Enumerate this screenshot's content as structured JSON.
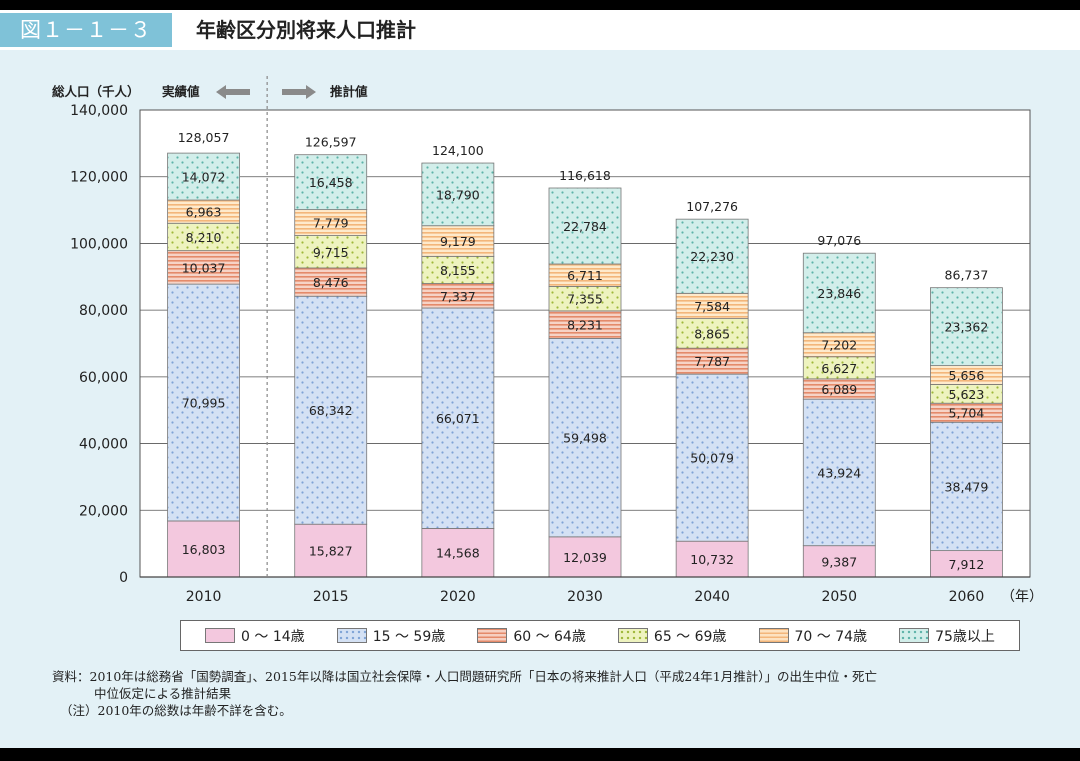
{
  "header": {
    "figure_label": "図１－１－３",
    "title": "年齢区分別将来人口推計"
  },
  "chart_data": {
    "type": "bar",
    "stacked": true,
    "categories": [
      "2010",
      "2015",
      "2020",
      "2030",
      "2040",
      "2050",
      "2060"
    ],
    "x_unit": "（年）",
    "ylabel": "総人口（千人）",
    "ylim": [
      0,
      140000
    ],
    "yticks": [
      0,
      20000,
      40000,
      60000,
      80000,
      100000,
      120000,
      140000
    ],
    "ytick_labels": [
      "0",
      "20,000",
      "40,000",
      "60,000",
      "80,000",
      "100,000",
      "120,000",
      "140,000"
    ],
    "actual_label": "実績値",
    "projected_label": "推計値",
    "series": [
      {
        "name": "0 ～ 14歳",
        "color": "#f3c8de",
        "pattern": "none",
        "values": [
          16803,
          15827,
          14568,
          12039,
          10732,
          9387,
          7912
        ],
        "labels": [
          "16,803",
          "15,827",
          "14,568",
          "12,039",
          "10,732",
          "9,387",
          "7,912"
        ]
      },
      {
        "name": "15 ～ 59歳",
        "color": "#d4e1f4",
        "pattern": "dots-blue",
        "values": [
          70995,
          68342,
          66071,
          59498,
          50079,
          43924,
          38479
        ],
        "labels": [
          "70,995",
          "68,342",
          "66,071",
          "59,498",
          "50,079",
          "43,924",
          "38,479"
        ]
      },
      {
        "name": "60 ～ 64歳",
        "color": "#f6cfc1",
        "pattern": "hlines-red",
        "values": [
          10037,
          8476,
          7337,
          8231,
          7787,
          6089,
          5704
        ],
        "labels": [
          "10,037",
          "8,476",
          "7,337",
          "8,231",
          "7,787",
          "6,089",
          "5,704"
        ]
      },
      {
        "name": "65 ～ 69歳",
        "color": "#eef3bf",
        "pattern": "dots-green",
        "values": [
          8210,
          9715,
          8155,
          7355,
          8865,
          6627,
          5623
        ],
        "labels": [
          "8,210",
          "9,715",
          "8,155",
          "7,355",
          "8,865",
          "6,627",
          "5,623"
        ]
      },
      {
        "name": "70 ～ 74歳",
        "color": "#fde2c0",
        "pattern": "hlines-orange",
        "values": [
          6963,
          7779,
          9179,
          6711,
          7584,
          7202,
          5656
        ],
        "labels": [
          "6,963",
          "7,779",
          "9,179",
          "6,711",
          "7,584",
          "7,202",
          "5,656"
        ]
      },
      {
        "name": "75歳以上",
        "color": "#d2eeea",
        "pattern": "dots-teal",
        "values": [
          14072,
          16458,
          18790,
          22784,
          22230,
          23846,
          23362
        ],
        "labels": [
          "14,072",
          "16,458",
          "18,790",
          "22,784",
          "22,230",
          "23,846",
          "23,362"
        ]
      }
    ],
    "totals": [
      128057,
      126597,
      124100,
      116618,
      107276,
      97076,
      86737
    ],
    "total_labels": [
      "128,057",
      "126,597",
      "124,100",
      "116,618",
      "107,276",
      "97,076",
      "86,737"
    ],
    "legend_position": "bottom"
  },
  "notes": {
    "line1": "資料：2010年は総務省「国勢調査」、2015年以降は国立社会保障・人口問題研究所「日本の将来推計人口（平成24年1月推計）」の出生中位・死亡",
    "line2": "中位仮定による推計結果",
    "line3": "（注）2010年の総数は年齢不詳を含む。"
  }
}
